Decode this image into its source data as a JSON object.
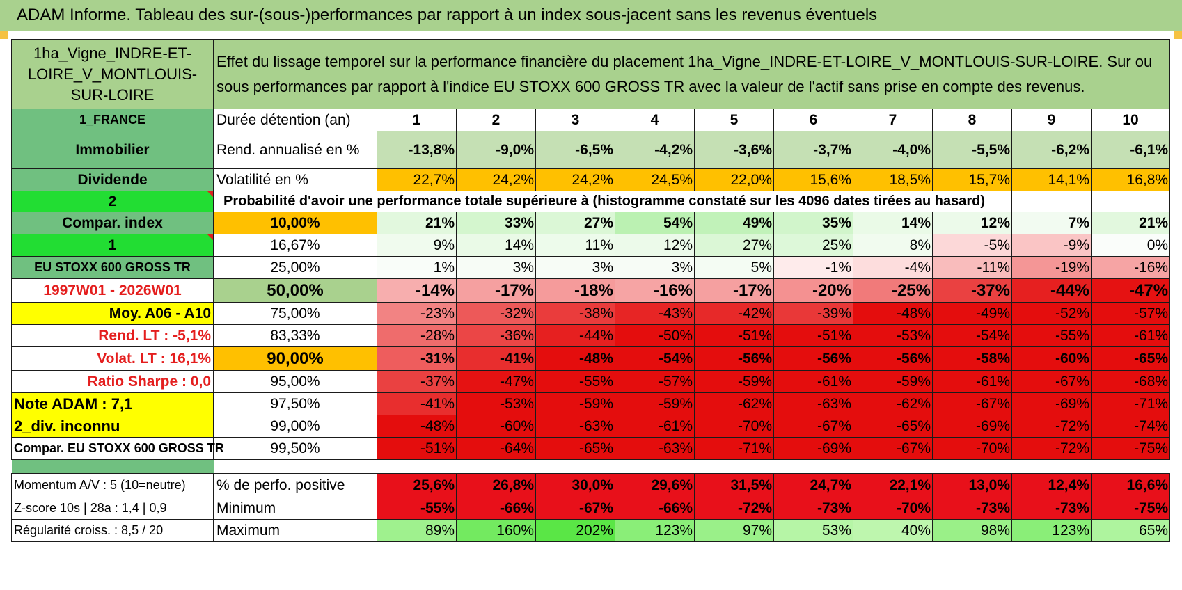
{
  "title": "ADAM Informe. Tableau des sur-(sous-)performances par rapport à un index sous-jacent sans les revenus éventuels",
  "asset_name": "1ha_Vigne_INDRE-ET-LOIRE_V_MONTLOUIS-SUR-LOIRE",
  "description": "Effet du lissage temporel sur la performance financière du placement 1ha_Vigne_INDRE-ET-LOIRE_V_MONTLOUIS-SUR-LOIRE. Sur ou sous performances par rapport à l'indice EU STOXX 600 GROSS TR avec la valeur de l'actif sans prise en compte des revenus.",
  "left_labels": {
    "country": "1_FRANCE",
    "type": "Immobilier",
    "income": "Dividende",
    "num_2": "2",
    "compar_index": "Compar. index",
    "num_1": "1",
    "index_name": "EU STOXX 600 GROSS TR",
    "period": "1997W01 - 2026W01",
    "moy": "Moy. A06 - A10",
    "rend_lt": "Rend. LT :    -5,1%",
    "volat_lt": "Volat. LT :    16,1%",
    "sharpe": "Ratio Sharpe :      0,0",
    "note": "Note ADAM : 7,1",
    "div": "2_div. inconnu",
    "compar_full": "Compar. EU STOXX 600 GROSS TR",
    "momentum": "Momentum A/V : 5 (10=neutre)",
    "zscore": "Z-score 10s | 28a : 1,4 | 0,9",
    "regularite": "Régularité croiss. : 8,5 / 20"
  },
  "row_labels": {
    "duree": "Durée détention (an)",
    "rend": "Rend. annualisé en %",
    "vol": "Volatilité en %",
    "proba": "Probabilité d'avoir une performance totale supérieure à (histogramme constaté sur les 4096 dates tirées au hasard)",
    "pos": "% de perfo. positive",
    "min": "Minimum",
    "max": "Maximum"
  },
  "years": [
    "1",
    "2",
    "3",
    "4",
    "5",
    "6",
    "7",
    "8",
    "9",
    "10"
  ],
  "rend_annualise": [
    "-13,8%",
    "-9,0%",
    "-6,5%",
    "-4,2%",
    "-3,6%",
    "-3,7%",
    "-4,0%",
    "-5,5%",
    "-6,2%",
    "-6,1%"
  ],
  "volatilite": [
    "22,7%",
    "24,2%",
    "24,2%",
    "24,5%",
    "22,0%",
    "15,6%",
    "18,5%",
    "15,7%",
    "14,1%",
    "16,8%"
  ],
  "quantiles": [
    {
      "pct": "10,00%",
      "values": [
        "21%",
        "33%",
        "27%",
        "54%",
        "49%",
        "35%",
        "14%",
        "12%",
        "7%",
        "21%"
      ]
    },
    {
      "pct": "16,67%",
      "values": [
        "9%",
        "14%",
        "11%",
        "12%",
        "27%",
        "25%",
        "8%",
        "-5%",
        "-9%",
        "0%"
      ]
    },
    {
      "pct": "25,00%",
      "values": [
        "1%",
        "3%",
        "3%",
        "3%",
        "5%",
        "-1%",
        "-4%",
        "-11%",
        "-19%",
        "-16%"
      ]
    },
    {
      "pct": "50,00%",
      "values": [
        "-14%",
        "-17%",
        "-18%",
        "-16%",
        "-17%",
        "-20%",
        "-25%",
        "-37%",
        "-44%",
        "-47%"
      ]
    },
    {
      "pct": "75,00%",
      "values": [
        "-23%",
        "-32%",
        "-38%",
        "-43%",
        "-42%",
        "-39%",
        "-48%",
        "-49%",
        "-52%",
        "-57%"
      ]
    },
    {
      "pct": "83,33%",
      "values": [
        "-28%",
        "-36%",
        "-44%",
        "-50%",
        "-51%",
        "-51%",
        "-53%",
        "-54%",
        "-55%",
        "-61%"
      ]
    },
    {
      "pct": "90,00%",
      "values": [
        "-31%",
        "-41%",
        "-48%",
        "-54%",
        "-56%",
        "-56%",
        "-56%",
        "-58%",
        "-60%",
        "-65%"
      ]
    },
    {
      "pct": "95,00%",
      "values": [
        "-37%",
        "-47%",
        "-55%",
        "-57%",
        "-59%",
        "-61%",
        "-59%",
        "-61%",
        "-67%",
        "-68%"
      ]
    },
    {
      "pct": "97,50%",
      "values": [
        "-41%",
        "-53%",
        "-59%",
        "-59%",
        "-62%",
        "-63%",
        "-62%",
        "-67%",
        "-69%",
        "-71%"
      ]
    },
    {
      "pct": "99,00%",
      "values": [
        "-48%",
        "-60%",
        "-63%",
        "-61%",
        "-70%",
        "-67%",
        "-65%",
        "-69%",
        "-72%",
        "-74%"
      ]
    },
    {
      "pct": "99,50%",
      "values": [
        "-51%",
        "-64%",
        "-65%",
        "-63%",
        "-71%",
        "-69%",
        "-67%",
        "-70%",
        "-72%",
        "-75%"
      ]
    }
  ],
  "perfo_positive": [
    "25,6%",
    "26,8%",
    "30,0%",
    "29,6%",
    "31,5%",
    "24,7%",
    "22,1%",
    "13,0%",
    "12,4%",
    "16,6%"
  ],
  "minimum": [
    "-55%",
    "-66%",
    "-67%",
    "-66%",
    "-72%",
    "-73%",
    "-70%",
    "-73%",
    "-73%",
    "-75%"
  ],
  "maximum": [
    "89%",
    "160%",
    "202%",
    "123%",
    "97%",
    "53%",
    "40%",
    "98%",
    "123%",
    "65%"
  ],
  "colors": {
    "banner_green": "#a9d18e",
    "label_green": "#70c080",
    "header_green": "#a9d18e",
    "bright_green": "#22dd33",
    "yellow": "#ffff00",
    "orange": "#ffc000",
    "red_text": "#e41e1e"
  }
}
